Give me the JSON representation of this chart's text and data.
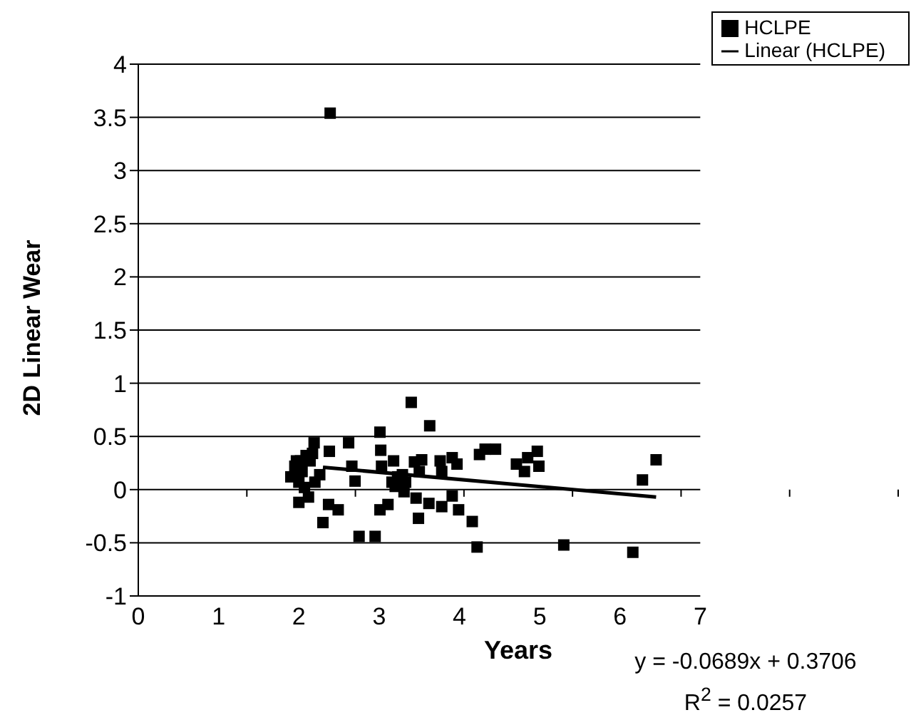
{
  "chart_data": {
    "type": "scatter",
    "xlabel": "Years",
    "ylabel": "2D Linear Wear",
    "xlim": [
      0,
      7
    ],
    "xticks": [
      0,
      1,
      2,
      3,
      4,
      5,
      6,
      7
    ],
    "ylim": [
      -1,
      4
    ],
    "yticks": [
      -1,
      -0.5,
      0,
      0.5,
      1,
      1.5,
      2,
      2.5,
      3,
      3.5,
      4
    ],
    "grid": "y",
    "legend": "top right",
    "marker": "square",
    "annotations": [
      "y = -0.0689x + 0.3706",
      "R$^{2}$ = 0.0257"
    ],
    "series": [
      {
        "name": "HCLPE",
        "type": "scatter",
        "color": "#000000",
        "x": [
          2.39,
          3.4,
          3.63,
          3.01,
          2.19,
          2.62,
          2.38,
          3.02,
          4.32,
          4.45,
          4.25,
          4.97,
          4.85,
          4.71,
          4.99,
          4.81,
          6.45,
          6.28,
          3.91,
          3.97,
          3.76,
          3.78,
          3.44,
          3.53,
          3.5,
          3.18,
          3.03,
          2.66,
          2.7,
          2.26,
          2.2,
          1.9,
          1.95,
          1.97,
          2.02,
          2.04,
          2.09,
          2.14,
          2.17,
          2.0,
          2.07,
          2.12,
          2.0,
          2.3,
          2.37,
          2.49,
          2.75,
          2.95,
          3.01,
          3.11,
          3.16,
          3.23,
          3.29,
          3.33,
          3.2,
          3.31,
          3.46,
          3.49,
          3.62,
          3.78,
          3.91,
          3.99,
          4.16,
          4.22,
          5.3,
          6.16
        ],
        "values": [
          3.54,
          0.82,
          0.6,
          0.54,
          0.44,
          0.44,
          0.36,
          0.37,
          0.38,
          0.38,
          0.33,
          0.36,
          0.3,
          0.24,
          0.22,
          0.17,
          0.28,
          0.09,
          0.3,
          0.24,
          0.27,
          0.17,
          0.26,
          0.28,
          0.17,
          0.27,
          0.22,
          0.22,
          0.08,
          0.14,
          0.07,
          0.12,
          0.22,
          0.27,
          0.27,
          0.17,
          0.32,
          0.27,
          0.34,
          0.07,
          0.02,
          -0.07,
          -0.12,
          -0.31,
          -0.14,
          -0.19,
          -0.44,
          -0.44,
          -0.19,
          -0.14,
          0.07,
          0.12,
          0.14,
          0.07,
          0.03,
          -0.02,
          -0.08,
          -0.27,
          -0.13,
          -0.16,
          -0.06,
          -0.19,
          -0.3,
          -0.54,
          -0.52,
          -0.59
        ]
      },
      {
        "name": "Linear (HCLPE)",
        "type": "line",
        "color": "#000000",
        "marker": "none",
        "x": [
          2.3,
          6.45
        ],
        "values": [
          0.21,
          -0.07
        ]
      }
    ]
  }
}
